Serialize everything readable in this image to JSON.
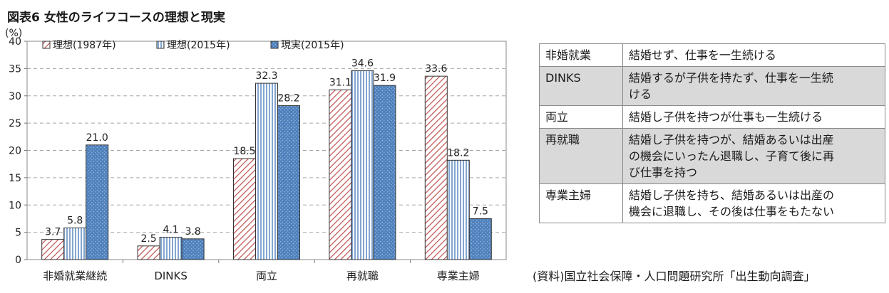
{
  "title": "図表6 女性のライフコースの理想と現実",
  "chart_data": {
    "type": "bar",
    "categories": [
      "非婚就業継続",
      "DINKS",
      "両立",
      "再就職",
      "専業主婦"
    ],
    "series": [
      {
        "name": "理想(1987年)",
        "values": [
          3.7,
          2.5,
          18.5,
          31.1,
          33.6
        ],
        "pattern": "diagonal-hatch",
        "color": "#c0504d"
      },
      {
        "name": "理想(2015年)",
        "values": [
          5.8,
          4.1,
          32.3,
          34.6,
          18.2
        ],
        "pattern": "vertical-lines",
        "color": "#4f81bd"
      },
      {
        "name": "現実(2015年)",
        "values": [
          21.0,
          3.8,
          28.2,
          31.9,
          7.5
        ],
        "pattern": "dotted-fill",
        "color": "#4f81bd"
      }
    ],
    "data_labels": [
      [
        "3.7",
        "2.5",
        "18.5",
        "31.1",
        "33.6"
      ],
      [
        "5.8",
        "4.1",
        "32.3",
        "34.6",
        "18.2"
      ],
      [
        "21.0",
        "3.8",
        "28.2",
        "31.9",
        "7.5"
      ]
    ],
    "ylabel": "(%)",
    "ylim": [
      0,
      40
    ],
    "yticks": [
      "0",
      "5",
      "10",
      "15",
      "20",
      "25",
      "30",
      "35",
      "40"
    ],
    "grid": true,
    "legend_position": "top-left"
  },
  "definitions": [
    {
      "term": "非婚就業",
      "desc": [
        "結婚せず、仕事を一生続ける"
      ]
    },
    {
      "term": "DINKS",
      "desc": [
        "結婚するが子供を持たず、仕事を一生続",
        "ける"
      ]
    },
    {
      "term": "両立",
      "desc": [
        "結婚し子供を持つが仕事も一生続ける"
      ]
    },
    {
      "term": "再就職",
      "desc": [
        "結婚し子供を持つが、結婚あるいは出産",
        "の機会にいったん退職し、子育て後に再",
        "び仕事を持つ"
      ]
    },
    {
      "term": "専業主婦",
      "desc": [
        "結婚し子供を持ち、結婚あるいは出産の",
        "機会に退職し、その後は仕事をもたない"
      ]
    }
  ],
  "source": "(資料)国立社会保障・人口問題研究所「出生動向調査」"
}
